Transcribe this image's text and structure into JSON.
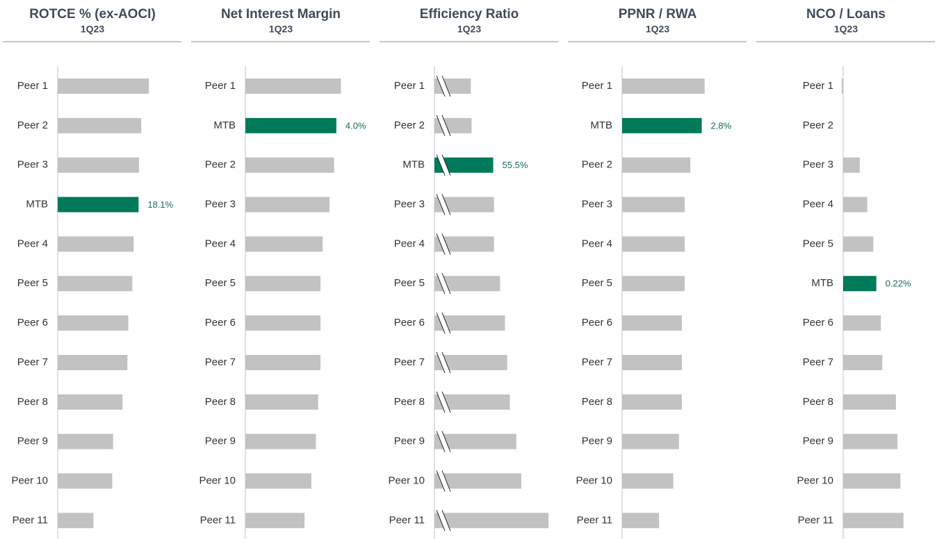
{
  "chart_data": [
    {
      "type": "bar",
      "orientation": "horizontal",
      "title": "ROTCE % (ex-AOCI)",
      "subtitle": "1Q23",
      "categories": [
        "Peer 1",
        "Peer 2",
        "Peer 3",
        "MTB",
        "Peer 4",
        "Peer 5",
        "Peer 6",
        "Peer 7",
        "Peer 8",
        "Peer 9",
        "Peer 10",
        "Peer 11"
      ],
      "values": [
        20.4,
        18.7,
        18.2,
        18.1,
        17.0,
        16.7,
        15.8,
        15.6,
        14.5,
        12.4,
        12.2,
        8.0
      ],
      "value_labels": [
        null,
        null,
        null,
        "18.1%",
        null,
        null,
        null,
        null,
        null,
        null,
        null,
        null
      ],
      "colors": [
        "#c2c2c2",
        "#c2c2c2",
        "#c2c2c2",
        "#007a5a",
        "#c2c2c2",
        "#c2c2c2",
        "#c2c2c2",
        "#c2c2c2",
        "#c2c2c2",
        "#c2c2c2",
        "#c2c2c2",
        "#c2c2c2"
      ],
      "xlim": [
        0,
        28
      ]
    },
    {
      "type": "bar",
      "orientation": "horizontal",
      "title": "Net Interest Margin",
      "subtitle": "1Q23",
      "categories": [
        "Peer 1",
        "MTB",
        "Peer 2",
        "Peer 3",
        "Peer 4",
        "Peer 5",
        "Peer 6",
        "Peer 7",
        "Peer 8",
        "Peer 9",
        "Peer 10",
        "Peer 11"
      ],
      "values": [
        4.2,
        4.0,
        3.9,
        3.7,
        3.4,
        3.3,
        3.3,
        3.3,
        3.2,
        3.1,
        2.9,
        2.6
      ],
      "value_labels": [
        null,
        "4.0%",
        null,
        null,
        null,
        null,
        null,
        null,
        null,
        null,
        null,
        null
      ],
      "colors": [
        "#c2c2c2",
        "#007a5a",
        "#c2c2c2",
        "#c2c2c2",
        "#c2c2c2",
        "#c2c2c2",
        "#c2c2c2",
        "#c2c2c2",
        "#c2c2c2",
        "#c2c2c2",
        "#c2c2c2",
        "#c2c2c2"
      ],
      "xlim": [
        0,
        5.5
      ]
    },
    {
      "type": "bar",
      "orientation": "horizontal",
      "title": "Efficiency Ratio",
      "subtitle": "1Q23",
      "categories": [
        "Peer 1",
        "Peer 2",
        "MTB",
        "Peer 3",
        "Peer 4",
        "Peer 5",
        "Peer 6",
        "Peer 7",
        "Peer 8",
        "Peer 9",
        "Peer 10",
        "Peer 11"
      ],
      "values": [
        49.6,
        49.8,
        55.5,
        55.7,
        55.7,
        57.3,
        58.6,
        59.2,
        59.9,
        61.6,
        62.9,
        70.1
      ],
      "value_labels": [
        null,
        null,
        "55.5%",
        null,
        null,
        null,
        null,
        null,
        null,
        null,
        null,
        null
      ],
      "colors": [
        "#c2c2c2",
        "#c2c2c2",
        "#007a5a",
        "#c2c2c2",
        "#c2c2c2",
        "#c2c2c2",
        "#c2c2c2",
        "#c2c2c2",
        "#c2c2c2",
        "#c2c2c2",
        "#c2c2c2",
        "#c2c2c2"
      ],
      "xlim": [
        40,
        73
      ],
      "axis_break": true
    },
    {
      "type": "bar",
      "orientation": "horizontal",
      "title": "PPNR / RWA",
      "subtitle": "1Q23",
      "categories": [
        "Peer 1",
        "MTB",
        "Peer 2",
        "Peer 3",
        "Peer 4",
        "Peer 5",
        "Peer 6",
        "Peer 7",
        "Peer 8",
        "Peer 9",
        "Peer 10",
        "Peer 11"
      ],
      "values": [
        2.9,
        2.8,
        2.4,
        2.2,
        2.2,
        2.2,
        2.1,
        2.1,
        2.1,
        2.0,
        1.8,
        1.3
      ],
      "value_labels": [
        null,
        "2.8%",
        null,
        null,
        null,
        null,
        null,
        null,
        null,
        null,
        null,
        null
      ],
      "colors": [
        "#c2c2c2",
        "#007a5a",
        "#c2c2c2",
        "#c2c2c2",
        "#c2c2c2",
        "#c2c2c2",
        "#c2c2c2",
        "#c2c2c2",
        "#c2c2c2",
        "#c2c2c2",
        "#c2c2c2",
        "#c2c2c2"
      ],
      "xlim": [
        0,
        4.4
      ]
    },
    {
      "type": "bar",
      "orientation": "horizontal",
      "title": "NCO / Loans",
      "subtitle": "1Q23",
      "categories": [
        "Peer 1",
        "Peer 2",
        "Peer 3",
        "Peer 4",
        "Peer 5",
        "MTB",
        "Peer 6",
        "Peer 7",
        "Peer 8",
        "Peer 9",
        "Peer 10",
        "Peer 11"
      ],
      "values": [
        -0.01,
        0,
        0.11,
        0.16,
        0.2,
        0.22,
        0.25,
        0.26,
        0.35,
        0.36,
        0.38,
        0.4
      ],
      "value_labels": [
        null,
        null,
        null,
        null,
        null,
        "0.22%",
        null,
        null,
        null,
        null,
        null,
        null
      ],
      "colors": [
        "#c2c2c2",
        "#c2c2c2",
        "#c2c2c2",
        "#c2c2c2",
        "#c2c2c2",
        "#007a5a",
        "#c2c2c2",
        "#c2c2c2",
        "#c2c2c2",
        "#c2c2c2",
        "#c2c2c2",
        "#c2c2c2"
      ],
      "xlim": [
        -0.02,
        0.81
      ]
    }
  ]
}
